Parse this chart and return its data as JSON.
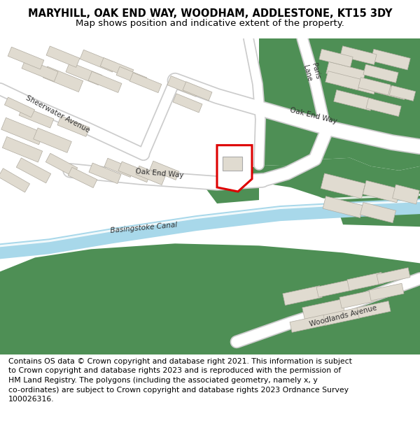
{
  "title": "MARYHILL, OAK END WAY, WOODHAM, ADDLESTONE, KT15 3DY",
  "subtitle": "Map shows position and indicative extent of the property.",
  "footer": "Contains OS data © Crown copyright and database right 2021. This information is subject\nto Crown copyright and database rights 2023 and is reproduced with the permission of\nHM Land Registry. The polygons (including the associated geometry, namely x, y\nco-ordinates) are subject to Crown copyright and database rights 2023 Ordnance Survey\n100026316.",
  "title_fontsize": 10.5,
  "subtitle_fontsize": 9.5,
  "footer_fontsize": 7.8,
  "map_bg": "#f2efe9",
  "green_color": "#4e8f55",
  "canal_color": "#a8d8ea",
  "canal_outline_color": "#7bbcd5",
  "road_color": "#ffffff",
  "road_outline_color": "#cccccc",
  "building_color": "#e0dbd0",
  "building_edge": "#b0aba0",
  "plot_color": "#dd0000",
  "text_color": "#333333"
}
